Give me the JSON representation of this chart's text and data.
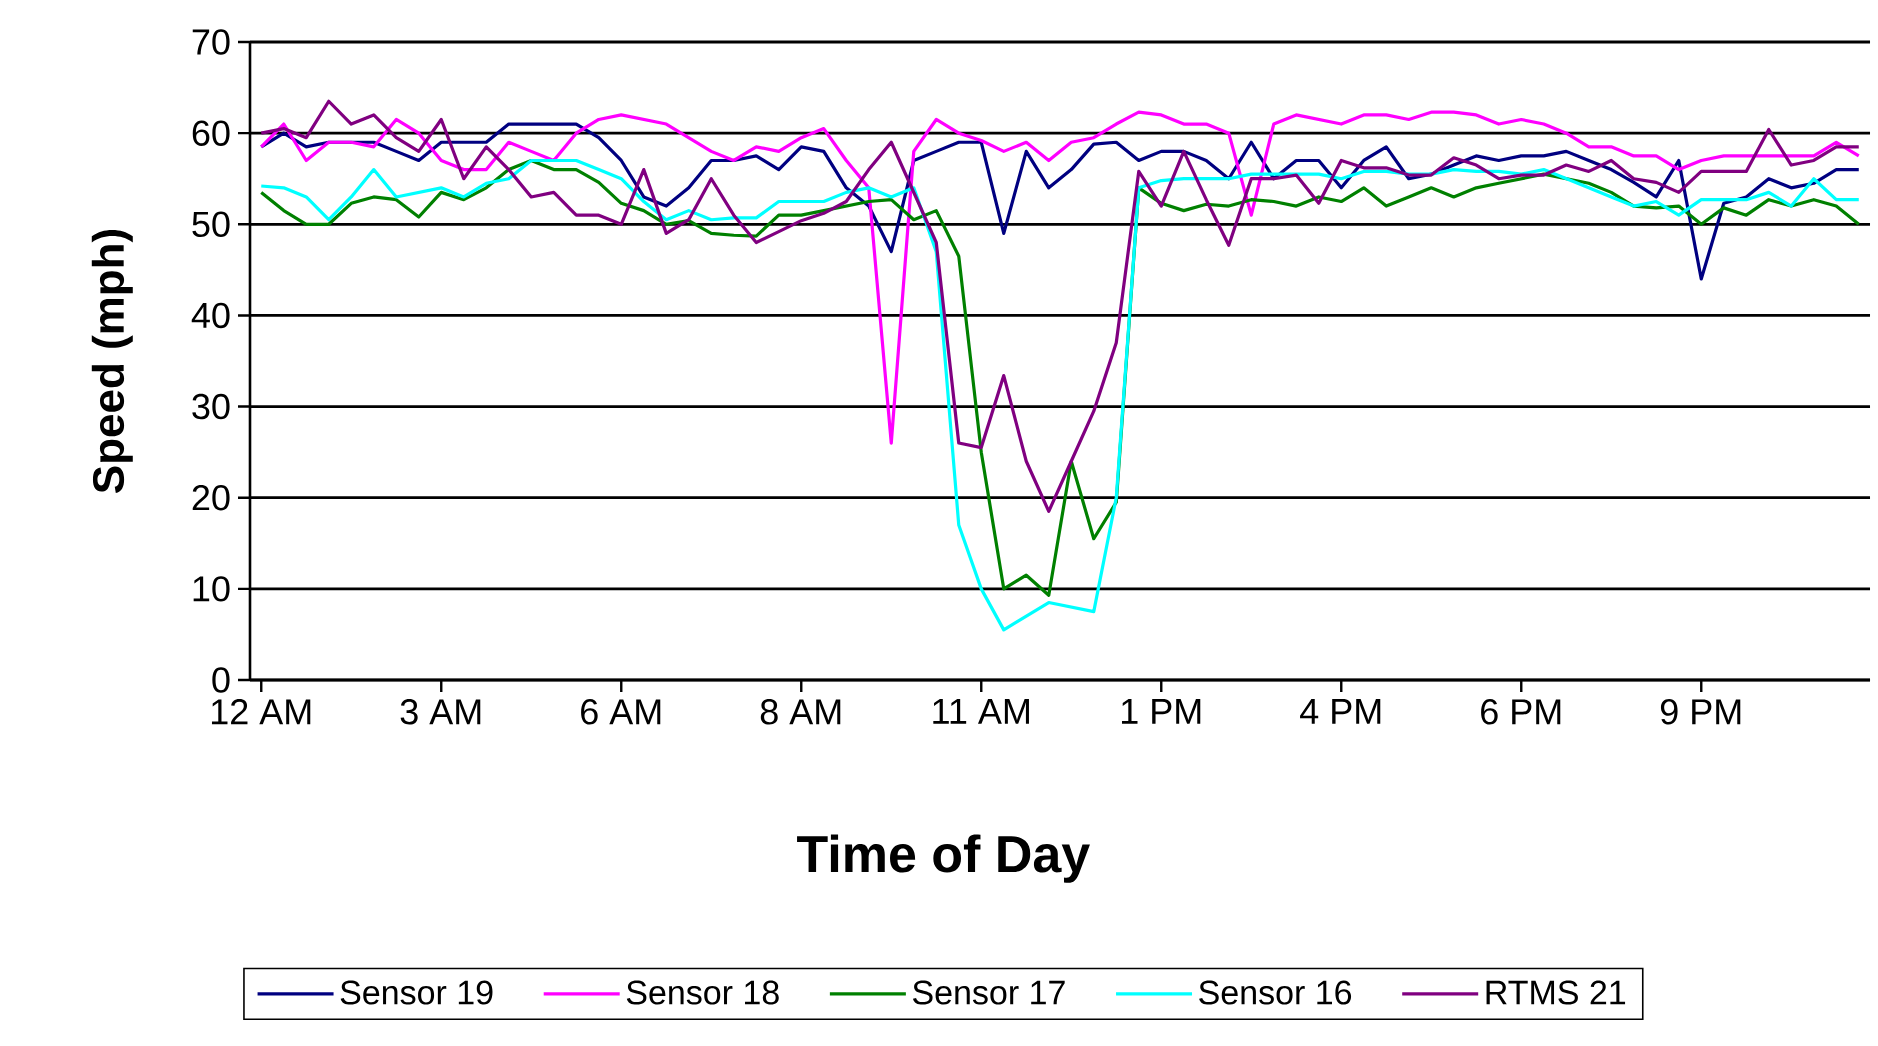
{
  "chart_data": {
    "type": "line",
    "xlabel": "Time of Day",
    "ylabel": "Speed (mph)",
    "categories": [
      "12 AM",
      null,
      null,
      null,
      null,
      null,
      null,
      null,
      "3 AM",
      null,
      null,
      null,
      null,
      null,
      null,
      null,
      "6 AM",
      null,
      null,
      null,
      null,
      null,
      null,
      null,
      "8 AM",
      null,
      null,
      null,
      null,
      null,
      null,
      null,
      "11 AM",
      null,
      null,
      null,
      null,
      null,
      null,
      null,
      "1 PM",
      null,
      null,
      null,
      null,
      null,
      null,
      null,
      "4 PM",
      null,
      null,
      null,
      null,
      null,
      null,
      null,
      "6 PM",
      null,
      null,
      null,
      null,
      null,
      null,
      null,
      "9 PM",
      null,
      null,
      null,
      null,
      null,
      null,
      null
    ],
    "series": [
      {
        "name": "Sensor 19",
        "color": "#000080",
        "values": [
          58.5,
          60,
          58.5,
          59,
          59,
          59,
          58,
          57,
          59,
          59,
          59,
          61,
          61,
          61,
          61,
          59.5,
          57,
          53,
          52,
          54,
          57,
          57,
          57.5,
          56,
          58.5,
          58,
          54,
          52,
          47,
          57,
          58,
          59,
          59,
          49,
          58,
          54,
          56,
          58.8,
          59,
          57,
          58,
          58,
          57,
          55,
          59,
          55,
          57,
          57,
          54,
          57,
          58.5,
          55,
          55.5,
          56.5,
          57.5,
          57,
          57.5,
          57.5,
          58,
          57,
          56,
          54.6,
          53,
          57,
          44,
          52.3,
          53,
          55,
          54,
          54.5,
          56,
          56
        ]
      },
      {
        "name": "Sensor 18",
        "color": "#ff00ff",
        "values": [
          58.5,
          61,
          57,
          59,
          59,
          58.5,
          61.5,
          60,
          57,
          56,
          56,
          59,
          58,
          57,
          60,
          61.5,
          62,
          61.5,
          61,
          59.5,
          58,
          57,
          58.5,
          58,
          59.5,
          60.5,
          57,
          54,
          26,
          58,
          61.5,
          60,
          59.2,
          58,
          59,
          57,
          59,
          59.5,
          61,
          62.3,
          62,
          61,
          61,
          60,
          51,
          61,
          62,
          61.5,
          61,
          62,
          62,
          61.5,
          62.3,
          62.3,
          62,
          61,
          61.5,
          61,
          60,
          58.5,
          58.5,
          57.5,
          57.5,
          56,
          57,
          57.5,
          57.5,
          57.5,
          57.5,
          57.5,
          59,
          57.5
        ]
      },
      {
        "name": "Sensor 17",
        "color": "#008000",
        "values": [
          53.5,
          51.5,
          50,
          50,
          52.3,
          53,
          52.7,
          50.8,
          53.5,
          52.7,
          54,
          56,
          57,
          56,
          56,
          54.6,
          52.3,
          51.5,
          50,
          50.4,
          49,
          48.8,
          48.7,
          51,
          51,
          51.5,
          52,
          52.5,
          52.7,
          50.5,
          51.5,
          46.5,
          25,
          10,
          11.5,
          9.3,
          24,
          15.5,
          19.5,
          54,
          52.3,
          51.5,
          52.2,
          52,
          52.7,
          52.5,
          52,
          53,
          52.5,
          54,
          52,
          53,
          54,
          53,
          54,
          54.5,
          55,
          55.5,
          55,
          54.5,
          53.5,
          52,
          51.8,
          52,
          50,
          51.8,
          51,
          52.7,
          52,
          52.7,
          52,
          50
        ]
      },
      {
        "name": "Sensor 16",
        "color": "#00ffff",
        "values": [
          54.2,
          54,
          53,
          50.5,
          53,
          56,
          53,
          53.5,
          54,
          53,
          54.5,
          55,
          57,
          57,
          57,
          56,
          55,
          52.5,
          50.5,
          51.5,
          50.5,
          50.7,
          50.7,
          52.5,
          52.5,
          52.5,
          53.5,
          54,
          53,
          54,
          47,
          17,
          10,
          5.5,
          7,
          8.5,
          8,
          7.5,
          20,
          54,
          54.8,
          55,
          55,
          55,
          55.5,
          55.5,
          55.5,
          55.5,
          55,
          55.8,
          55.8,
          55.5,
          55.5,
          56,
          55.8,
          55.8,
          55.5,
          56,
          55,
          54,
          53,
          52,
          52.5,
          51,
          52.7,
          52.7,
          52.7,
          53.5,
          52,
          55,
          52.7,
          52.7
        ]
      },
      {
        "name": "RTMS 21",
        "color": "#800080",
        "values": [
          60,
          60.5,
          59.5,
          63.5,
          61,
          62,
          59.5,
          58,
          61.5,
          55,
          58.5,
          56,
          53,
          53.5,
          51,
          51,
          50,
          56,
          49,
          50.5,
          55,
          51,
          48,
          49.2,
          50.4,
          51.2,
          52.5,
          56,
          59,
          53.5,
          48,
          26,
          25.5,
          33.4,
          24,
          18.5,
          24,
          29.5,
          37,
          55.8,
          52,
          58,
          52.7,
          47.7,
          55,
          55,
          55.4,
          52.3,
          57,
          56.2,
          56.2,
          55.4,
          55.4,
          57.3,
          56.5,
          55,
          55.4,
          55.4,
          56.5,
          55.8,
          57,
          55,
          54.6,
          53.5,
          55.8,
          55.8,
          55.8,
          60.4,
          56.5,
          57,
          58.5,
          58.5
        ]
      }
    ],
    "ylim": [
      0,
      70
    ],
    "yticks": [
      0,
      10,
      20,
      30,
      40,
      50,
      60,
      70
    ],
    "grid": "y",
    "legend": "bottom"
  }
}
